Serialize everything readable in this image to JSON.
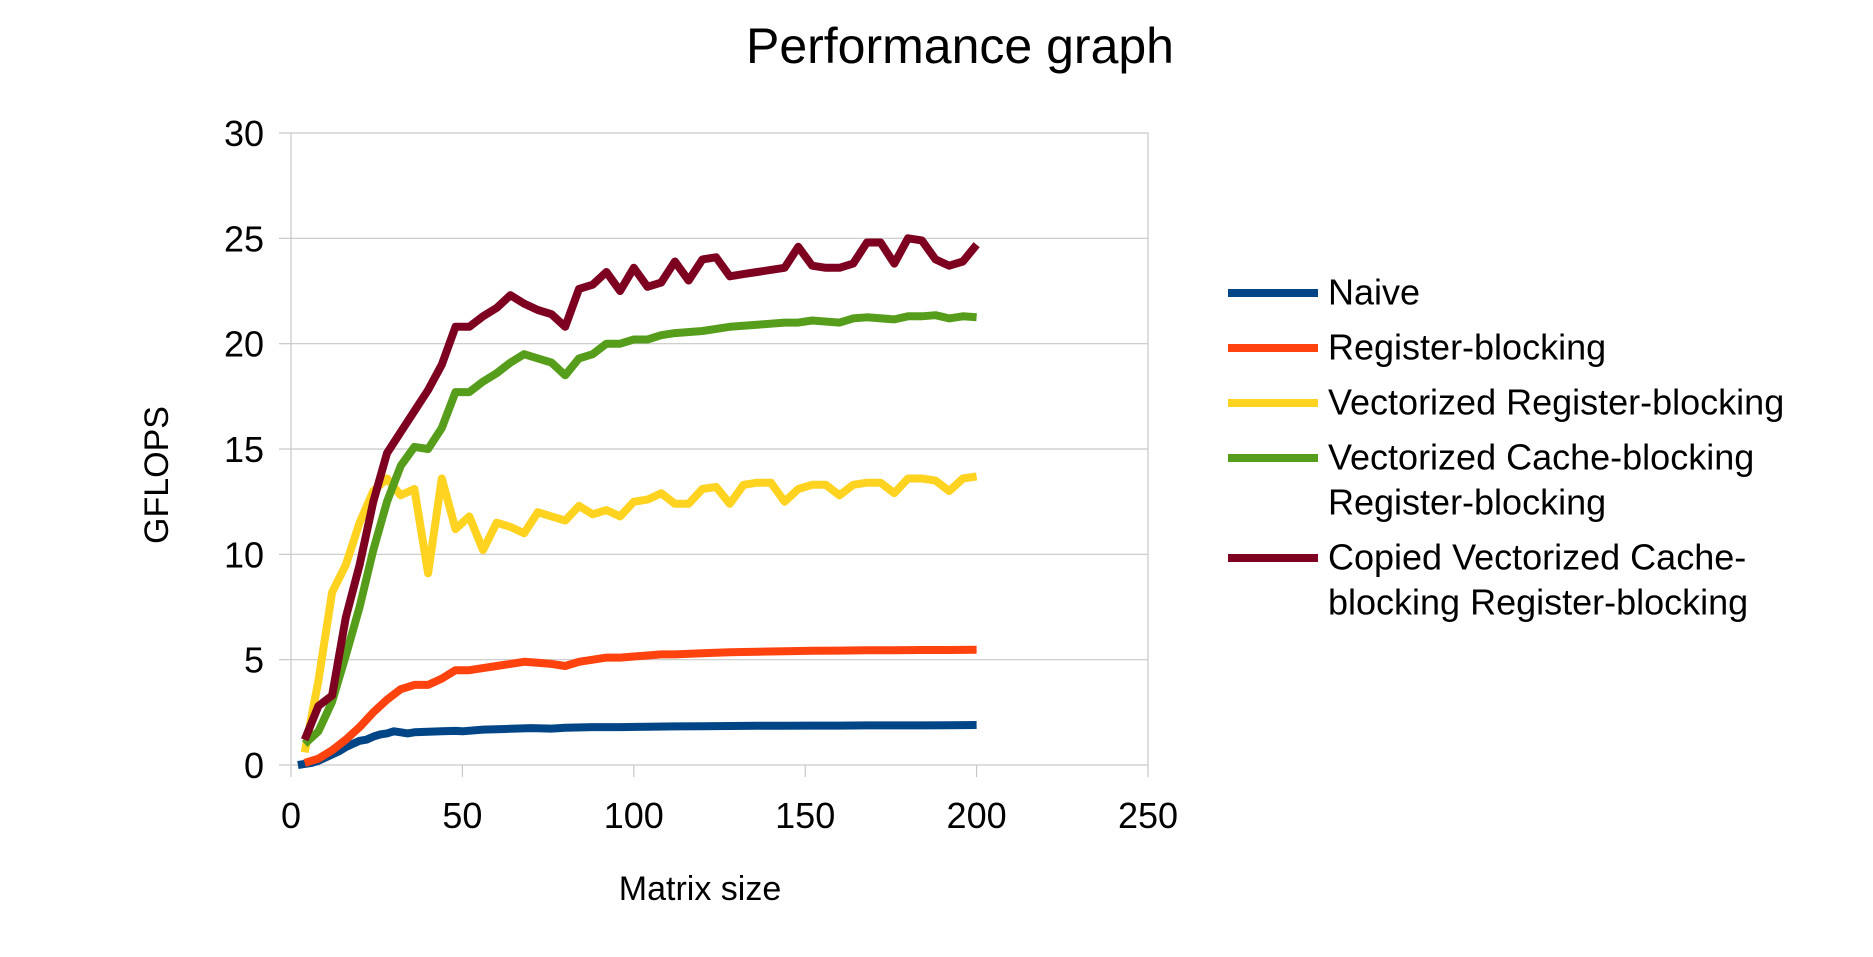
{
  "chart_data": {
    "type": "line",
    "title": "Performance graph",
    "xlabel": "Matrix size",
    "ylabel": "GFLOPS",
    "xlim": [
      0,
      250
    ],
    "ylim": [
      0,
      30
    ],
    "xticks": [
      0,
      50,
      100,
      150,
      200,
      250
    ],
    "yticks": [
      0,
      5,
      10,
      15,
      20,
      25,
      30
    ],
    "grid": true,
    "legend_position": "right",
    "series": [
      {
        "name": "Naive",
        "color": "#004586",
        "x": [
          2,
          4,
          6,
          8,
          10,
          12,
          14,
          16,
          18,
          20,
          22,
          24,
          26,
          28,
          30,
          32,
          34,
          36,
          40,
          44,
          48,
          50,
          56,
          60,
          64,
          70,
          76,
          80,
          88,
          96,
          104,
          112,
          120,
          128,
          136,
          144,
          152,
          160,
          168,
          176,
          184,
          192,
          200
        ],
        "y": [
          0.0,
          0.05,
          0.1,
          0.2,
          0.35,
          0.5,
          0.65,
          0.85,
          1.0,
          1.15,
          1.2,
          1.35,
          1.45,
          1.5,
          1.6,
          1.55,
          1.5,
          1.55,
          1.58,
          1.6,
          1.62,
          1.6,
          1.68,
          1.7,
          1.72,
          1.75,
          1.73,
          1.77,
          1.8,
          1.8,
          1.82,
          1.83,
          1.84,
          1.85,
          1.86,
          1.86,
          1.87,
          1.87,
          1.88,
          1.88,
          1.88,
          1.89,
          1.9
        ]
      },
      {
        "name": "Register-blocking",
        "color": "#ff420e",
        "x": [
          4,
          8,
          12,
          16,
          20,
          24,
          28,
          32,
          36,
          40,
          44,
          48,
          52,
          56,
          60,
          64,
          68,
          72,
          76,
          80,
          84,
          88,
          92,
          96,
          100,
          104,
          108,
          112,
          120,
          128,
          136,
          144,
          152,
          160,
          168,
          176,
          184,
          192,
          200
        ],
        "y": [
          0.1,
          0.3,
          0.7,
          1.2,
          1.8,
          2.5,
          3.1,
          3.6,
          3.8,
          3.8,
          4.1,
          4.5,
          4.5,
          4.6,
          4.7,
          4.8,
          4.9,
          4.85,
          4.8,
          4.7,
          4.9,
          5.0,
          5.1,
          5.1,
          5.15,
          5.2,
          5.25,
          5.25,
          5.3,
          5.35,
          5.38,
          5.4,
          5.42,
          5.43,
          5.45,
          5.45,
          5.46,
          5.46,
          5.47
        ]
      },
      {
        "name": "Vectorized Register-blocking",
        "color": "#ffd320",
        "x": [
          4,
          8,
          12,
          16,
          20,
          24,
          28,
          32,
          36,
          40,
          44,
          48,
          52,
          56,
          60,
          64,
          68,
          72,
          76,
          80,
          84,
          88,
          92,
          96,
          100,
          104,
          108,
          112,
          116,
          120,
          124,
          128,
          132,
          136,
          140,
          144,
          148,
          152,
          156,
          160,
          164,
          168,
          172,
          176,
          180,
          184,
          188,
          192,
          196,
          200
        ],
        "y": [
          0.6,
          4.0,
          8.2,
          9.5,
          11.5,
          13.0,
          13.6,
          12.8,
          13.1,
          9.1,
          13.6,
          11.2,
          11.8,
          10.2,
          11.5,
          11.3,
          11.0,
          12.0,
          11.8,
          11.6,
          12.3,
          11.9,
          12.1,
          11.8,
          12.5,
          12.6,
          12.9,
          12.4,
          12.4,
          13.1,
          13.2,
          12.4,
          13.3,
          13.4,
          13.4,
          12.5,
          13.1,
          13.3,
          13.3,
          12.8,
          13.3,
          13.4,
          13.4,
          12.9,
          13.6,
          13.6,
          13.5,
          13.0,
          13.6,
          13.7
        ]
      },
      {
        "name": "Vectorized Cache-blocking Register-blocking",
        "color": "#579d1c",
        "x": [
          4,
          8,
          12,
          16,
          20,
          24,
          28,
          32,
          36,
          40,
          44,
          48,
          52,
          56,
          60,
          64,
          68,
          72,
          76,
          80,
          84,
          88,
          92,
          96,
          100,
          104,
          108,
          112,
          120,
          128,
          136,
          144,
          148,
          152,
          160,
          164,
          168,
          176,
          180,
          184,
          188,
          192,
          196,
          200
        ],
        "y": [
          1.0,
          1.6,
          3.0,
          5.2,
          7.5,
          10.2,
          12.5,
          14.2,
          15.1,
          15.0,
          16.0,
          17.7,
          17.7,
          18.2,
          18.6,
          19.1,
          19.5,
          19.3,
          19.1,
          18.5,
          19.3,
          19.5,
          20.0,
          20.0,
          20.2,
          20.2,
          20.4,
          20.5,
          20.6,
          20.8,
          20.9,
          21.0,
          21.0,
          21.1,
          21.0,
          21.2,
          21.25,
          21.15,
          21.3,
          21.3,
          21.35,
          21.2,
          21.3,
          21.25
        ]
      },
      {
        "name": "Copied Vectorized Cache-blocking Register-blocking",
        "color": "#7e0021",
        "x": [
          4,
          8,
          12,
          16,
          20,
          24,
          28,
          32,
          36,
          40,
          44,
          48,
          52,
          56,
          60,
          64,
          68,
          72,
          76,
          80,
          84,
          88,
          92,
          96,
          100,
          104,
          108,
          112,
          116,
          120,
          124,
          128,
          132,
          136,
          144,
          148,
          152,
          156,
          160,
          164,
          168,
          172,
          176,
          180,
          184,
          188,
          192,
          196,
          200
        ],
        "y": [
          1.2,
          2.8,
          3.3,
          7.0,
          9.5,
          12.5,
          14.8,
          15.8,
          16.8,
          17.8,
          19.0,
          20.8,
          20.8,
          21.3,
          21.7,
          22.3,
          21.9,
          21.6,
          21.4,
          20.8,
          22.6,
          22.8,
          23.4,
          22.5,
          23.6,
          22.7,
          22.9,
          23.9,
          23.0,
          24.0,
          24.1,
          23.2,
          23.3,
          23.4,
          23.6,
          24.6,
          23.7,
          23.6,
          23.6,
          23.8,
          24.8,
          24.8,
          23.8,
          25.0,
          24.9,
          24.0,
          23.7,
          23.9,
          24.7
        ]
      }
    ]
  }
}
